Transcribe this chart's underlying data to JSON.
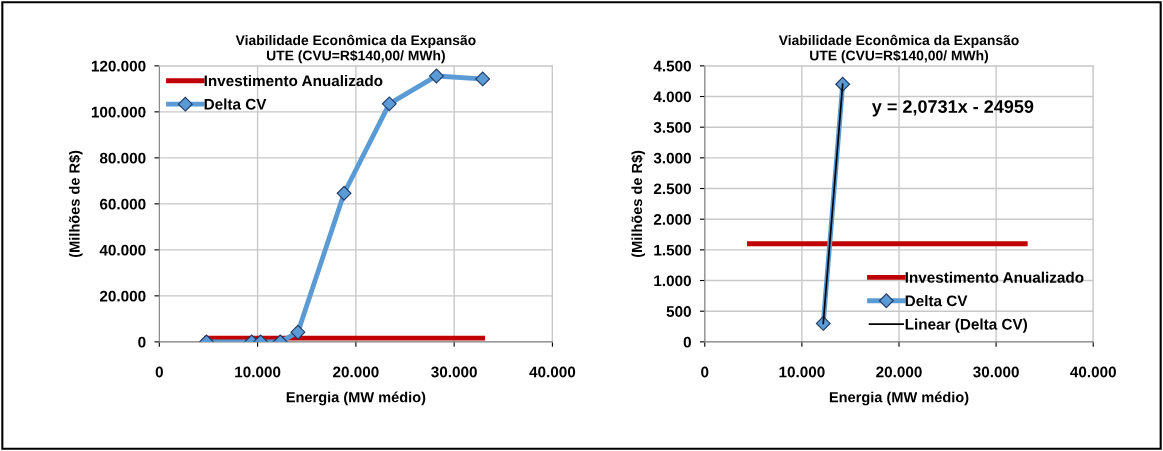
{
  "chart_data": [
    {
      "type": "line",
      "title": "Viabilidade Econômica da Expansão\nUTE (CVU=R$140,00/ MWh)",
      "xlabel": "Energia (MW médio)",
      "ylabel": "(Milhões de R$)",
      "x": [
        4800,
        9400,
        10300,
        12300,
        14100,
        18800,
        23400,
        28200,
        32900
      ],
      "series": [
        {
          "name": "Investimento Anualizado",
          "color": "#c00000",
          "x": [
            4800,
            32900
          ],
          "values": [
            1600,
            1600
          ],
          "marker": "none"
        },
        {
          "name": "Delta CV",
          "color": "#5b9bd5",
          "values": [
            0,
            0,
            0,
            0,
            4200,
            64600,
            103500,
            115600,
            114300
          ],
          "marker": "diamond"
        }
      ],
      "xlim": [
        0,
        40000
      ],
      "xticks": [
        0,
        {
          "value": 10000,
          "label": "10.000"
        },
        {
          "value": 20000,
          "label": "20.000"
        },
        {
          "value": 30000,
          "label": "30.000"
        },
        {
          "value": 40000,
          "label": "40.000"
        }
      ],
      "ylim": [
        0,
        120000
      ],
      "yticks": [
        0,
        {
          "value": 20000,
          "label": "20.000"
        },
        {
          "value": 40000,
          "label": "40.000"
        },
        {
          "value": 60000,
          "label": "60.000"
        },
        {
          "value": 80000,
          "label": "80.000"
        },
        {
          "value": 100000,
          "label": "100.000"
        },
        {
          "value": 120000,
          "label": "120.000"
        }
      ],
      "grid": true,
      "legend": "top left"
    },
    {
      "type": "line",
      "title": "Viabilidade Econômica da Expansão\nUTE (CVU=R$140,00/ MWh)",
      "xlabel": "Energia (MW médio)",
      "ylabel": "(Milhões de R$)",
      "x": [
        12200,
        14200
      ],
      "series": [
        {
          "name": "Investimento Anualizado",
          "color": "#c00000",
          "x": [
            4600,
            33000
          ],
          "values": [
            1600,
            1600
          ],
          "marker": "none"
        },
        {
          "name": "Delta CV",
          "color": "#5b9bd5",
          "values": [
            300,
            4200
          ],
          "marker": "diamond"
        },
        {
          "name": "Linear (Delta CV)",
          "color": "#000000",
          "type": "line",
          "x": [
            12200,
            14200
          ],
          "values": [
            300,
            4200
          ],
          "marker": "none"
        }
      ],
      "annotations": [
        "y = 2,0731x - 24959"
      ],
      "xlim": [
        0,
        40000
      ],
      "xticks": [
        0,
        {
          "value": 10000,
          "label": "10.000"
        },
        {
          "value": 20000,
          "label": "20.000"
        },
        {
          "value": 30000,
          "label": "30.000"
        },
        {
          "value": 40000,
          "label": "40.000"
        }
      ],
      "ylim": [
        0,
        4500
      ],
      "yticks": [
        0,
        500,
        {
          "value": 1000,
          "label": "1.000"
        },
        {
          "value": 1500,
          "label": "1.500"
        },
        {
          "value": 2000,
          "label": "2.000"
        },
        {
          "value": 2500,
          "label": "2.500"
        },
        {
          "value": 3000,
          "label": "3.000"
        },
        {
          "value": 3500,
          "label": "3.500"
        },
        {
          "value": 4000,
          "label": "4.000"
        },
        {
          "value": 4500,
          "label": "4.500"
        }
      ],
      "grid": true,
      "legend": "bottom right"
    }
  ]
}
